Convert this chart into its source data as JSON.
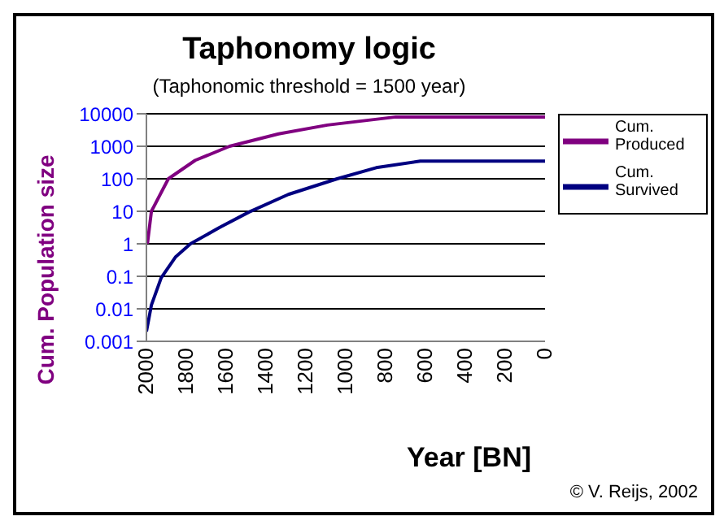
{
  "chart_data": {
    "type": "line",
    "title": "Taphonomy logic",
    "subtitle": "(Taphonomic threshold = 1500 year)",
    "xlabel": "Year [BN]",
    "ylabel": "Cum. Population size",
    "annotations": [
      "© V. Reijs, 2002"
    ],
    "xlim": [
      2000,
      0
    ],
    "xticks": [
      2000,
      1800,
      1600,
      1400,
      1200,
      1000,
      800,
      600,
      400,
      200,
      0
    ],
    "ylim": [
      0.001,
      10000
    ],
    "yticks": [
      0.001,
      0.01,
      0.1,
      1,
      10,
      100,
      1000,
      10000
    ],
    "log": "y",
    "grid": "y",
    "legend": "right",
    "marker": "none",
    "line_style": "solid",
    "series": [
      {
        "name": "Cum. Produced",
        "color": "#800080",
        "x": [
          1995,
          1975,
          1890,
          1755,
          1583,
          1337,
          1092,
          748,
          0
        ],
        "values": [
          1,
          10,
          100,
          370,
          1000,
          2400,
          4500,
          8000,
          8000
        ]
      },
      {
        "name": "Cum. Survived",
        "color": "#000080",
        "x": [
          2000,
          1975,
          1926,
          1853,
          1779,
          1632,
          1485,
          1288,
          1043,
          847,
          626,
          0
        ],
        "values": [
          0.002,
          0.013,
          0.09,
          0.4,
          1,
          3.2,
          9.5,
          33,
          100,
          220,
          350,
          350
        ]
      }
    ]
  }
}
